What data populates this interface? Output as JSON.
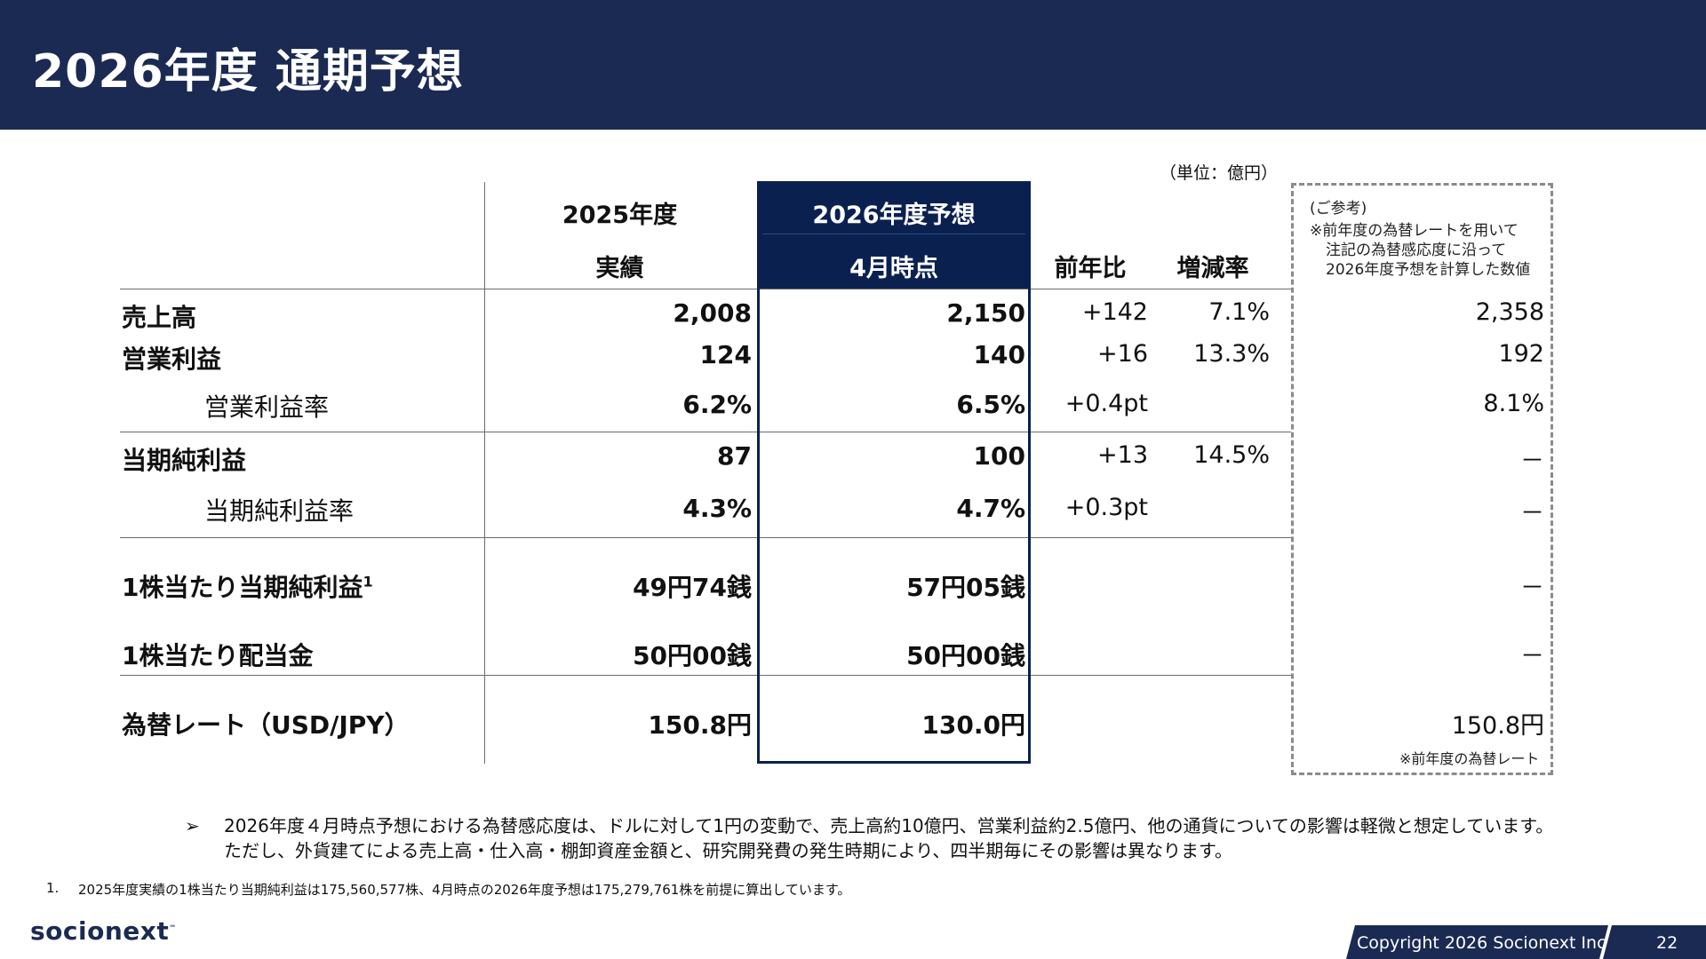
{
  "title": "2026年度 通期予想",
  "unit_label": "（単位：億円）",
  "headers": {
    "fy2025_line1": "2025年度",
    "fy2025_line2": "実績",
    "fy2026_line1": "2026年度予想",
    "fy2026_line2": "4月時点",
    "yoy": "前年比",
    "change_rate": "増減率"
  },
  "reference": {
    "title": "(ご参考)",
    "note_line1": "※前年度の為替レートを用いて",
    "note_line2": "注記の為替感応度に沿って",
    "note_line3": "2026年度予想を計算した数値",
    "footnote": "※前年度の為替レート"
  },
  "rows": [
    {
      "label": "売上高",
      "fy2025": "2,008",
      "fy2026": "2,150",
      "yoy": "+142",
      "rate": "7.1%",
      "ref": "2,358"
    },
    {
      "label": "営業利益",
      "fy2025": "124",
      "fy2026": "140",
      "yoy": "+16",
      "rate": "13.3%",
      "ref": "192"
    },
    {
      "label": "営業利益率",
      "fy2025": "6.2%",
      "fy2026": "6.5%",
      "yoy": "+0.4pt",
      "rate": "",
      "ref": "8.1%"
    },
    {
      "label": "当期純利益",
      "fy2025": "87",
      "fy2026": "100",
      "yoy": "+13",
      "rate": "14.5%",
      "ref": "－"
    },
    {
      "label": "当期純利益率",
      "fy2025": "4.3%",
      "fy2026": "4.7%",
      "yoy": "+0.3pt",
      "rate": "",
      "ref": "－"
    },
    {
      "label": "1株当たり当期純利益",
      "sup": "1",
      "fy2025": "49円74銭",
      "fy2026": "57円05銭",
      "yoy": "",
      "rate": "",
      "ref": "－"
    },
    {
      "label": "1株当たり配当金",
      "fy2025": "50円00銭",
      "fy2026": "50円00銭",
      "yoy": "",
      "rate": "",
      "ref": "－"
    },
    {
      "label": "為替レート（USD/JPY）",
      "fy2025": "150.8円",
      "fy2026": "130.0円",
      "yoy": "",
      "rate": "",
      "ref": "150.8円"
    }
  ],
  "bullet": {
    "mark": "➢",
    "line1": "2026年度４月時点予想における為替感応度は、ドルに対して1円の変動で、売上高約10億円、営業利益約2.5億円、他の通貨についての影響は軽微と想定しています。",
    "line2": "ただし、外貨建てによる売上高・仕入高・棚卸資産金額と、研究開発費の発生時期により、四半期毎にその影響は異なります。"
  },
  "footnote": {
    "number": "1.",
    "text": "2025年度実績の1株当たり当期純利益は175,560,577株、4月時点の2026年度予想は175,279,761株を前提に算出しています。"
  },
  "footer": {
    "logo": "socionext",
    "logo_tm": "™",
    "copyright": "Copyright 2026 Socionext Inc.",
    "page": "22"
  }
}
